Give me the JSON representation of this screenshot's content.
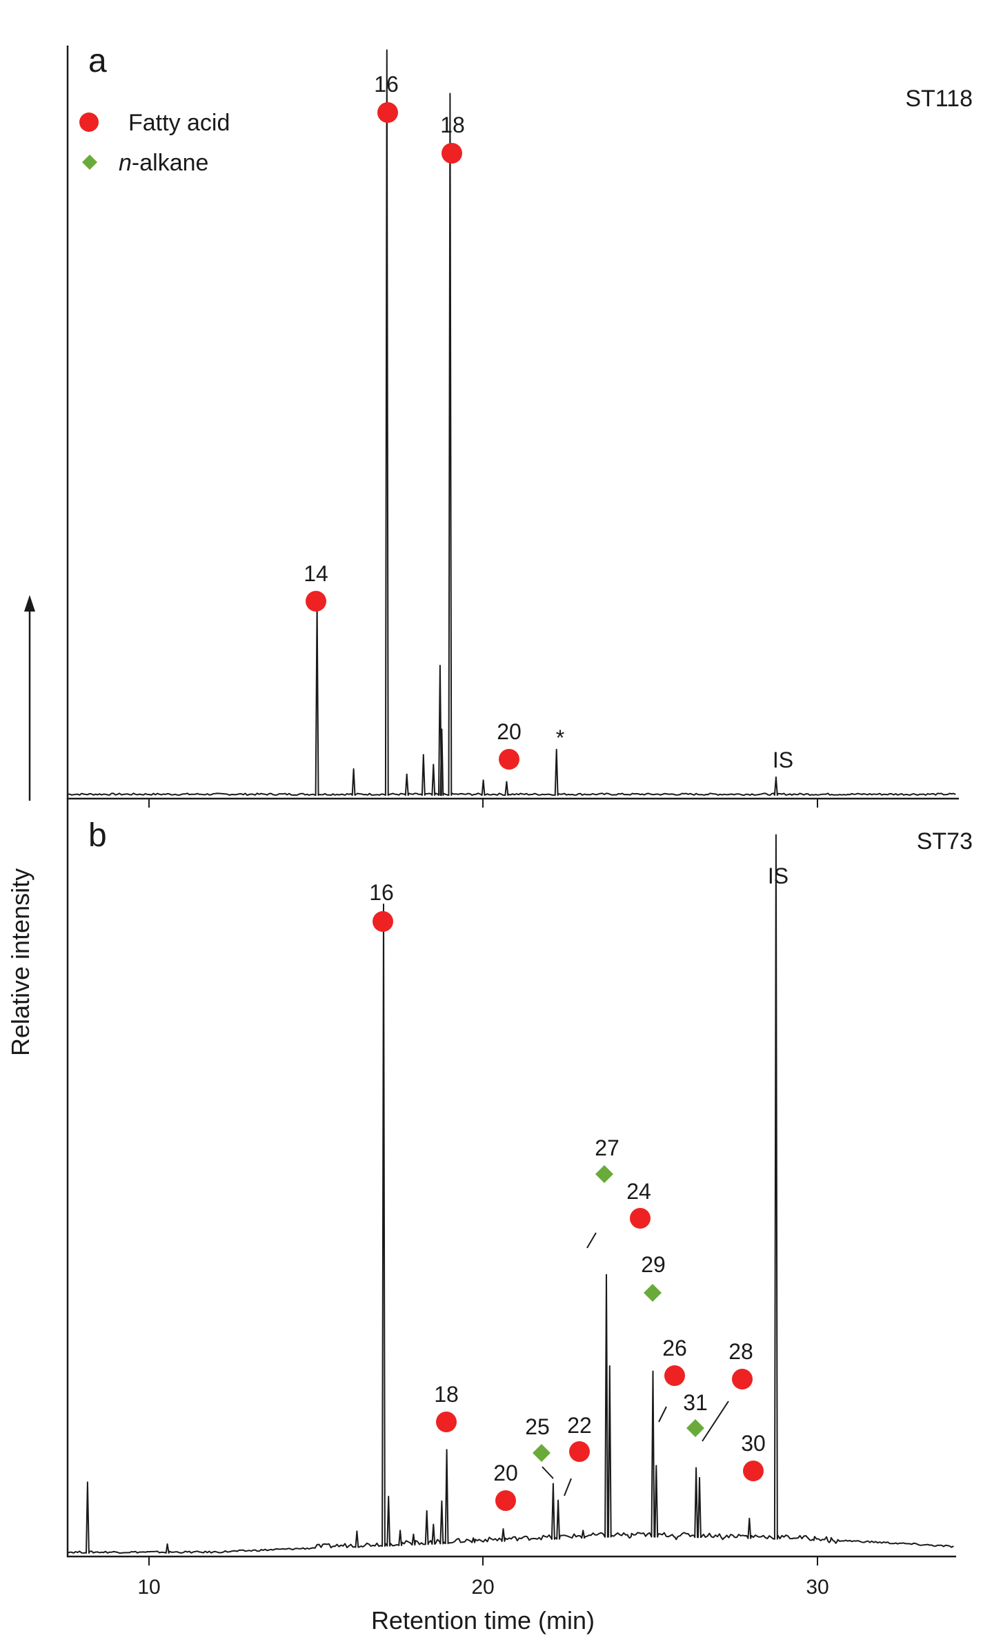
{
  "chart_data": [
    {
      "type": "line",
      "panel_label": "a",
      "sample": "ST118",
      "legend": [
        {
          "marker": "circle",
          "color": "#ee2222",
          "text": "Fatty acid",
          "italic_prefix": "",
          "suffix": ""
        },
        {
          "marker": "diamond",
          "color": "#6aaa3a",
          "text": "n-alkane",
          "italic_prefix": "n",
          "suffix": "-alkane"
        }
      ],
      "ylim": [
        0,
        100
      ],
      "peaks": [
        {
          "x": 15.1,
          "y": 25.6
        },
        {
          "x": 16.2,
          "y": 3.5
        },
        {
          "x": 17.8,
          "y": 2.8
        },
        {
          "x": 18.3,
          "y": 5.4
        },
        {
          "x": 18.6,
          "y": 4.1
        },
        {
          "x": 18.8,
          "y": 17.3
        },
        {
          "x": 18.85,
          "y": 8.8
        },
        {
          "x": 19.1,
          "y": 93.6
        },
        {
          "x": 20.1,
          "y": 2.0
        },
        {
          "x": 20.8,
          "y": 1.8
        },
        {
          "x": 22.3,
          "y": 6.1
        },
        {
          "x": 28.9,
          "y": 2.4
        },
        {
          "x": 17.2,
          "y": 99.4
        }
      ],
      "annotations": [
        {
          "label": "14",
          "marker": "circle",
          "x": 15.1
        },
        {
          "label": "16",
          "marker": "circle",
          "x": 17.2
        },
        {
          "label": "18",
          "marker": "circle",
          "x": 19.1
        },
        {
          "label": "20",
          "marker": "circle",
          "x": 20.8
        },
        {
          "label": "*",
          "marker": "none",
          "x": 22.3
        },
        {
          "label": "IS",
          "marker": "none",
          "x": 28.9
        }
      ]
    },
    {
      "type": "line",
      "panel_label": "b",
      "sample": "ST73",
      "ylim": [
        0,
        100
      ],
      "peaks": [
        {
          "x": 8.2,
          "y": 9.4
        },
        {
          "x": 10.6,
          "y": 1.2
        },
        {
          "x": 16.3,
          "y": 2.9
        },
        {
          "x": 17.1,
          "y": 86.0
        },
        {
          "x": 17.25,
          "y": 7.5
        },
        {
          "x": 17.6,
          "y": 3.0
        },
        {
          "x": 18.0,
          "y": 2.5
        },
        {
          "x": 18.4,
          "y": 5.6
        },
        {
          "x": 18.6,
          "y": 3.8
        },
        {
          "x": 18.85,
          "y": 6.9
        },
        {
          "x": 19.0,
          "y": 13.7
        },
        {
          "x": 19.8,
          "y": 2.0
        },
        {
          "x": 20.7,
          "y": 3.2
        },
        {
          "x": 22.2,
          "y": 9.2
        },
        {
          "x": 22.35,
          "y": 7.0
        },
        {
          "x": 23.1,
          "y": 3.0
        },
        {
          "x": 23.8,
          "y": 36.9
        },
        {
          "x": 23.9,
          "y": 24.8
        },
        {
          "x": 24.5,
          "y": 2.0
        },
        {
          "x": 25.2,
          "y": 24.1
        },
        {
          "x": 25.3,
          "y": 11.6
        },
        {
          "x": 25.9,
          "y": 1.8
        },
        {
          "x": 26.5,
          "y": 11.3
        },
        {
          "x": 26.6,
          "y": 10.0
        },
        {
          "x": 27.3,
          "y": 1.8
        },
        {
          "x": 28.1,
          "y": 4.6
        },
        {
          "x": 28.9,
          "y": 95.2
        },
        {
          "x": 30.0,
          "y": 1.8
        },
        {
          "x": 30.5,
          "y": 1.4
        },
        {
          "x": 30.7,
          "y": 1.3
        }
      ],
      "annotations": [
        {
          "label": "16",
          "marker": "circle",
          "x": 17.1
        },
        {
          "label": "18",
          "marker": "circle",
          "x": 19.0
        },
        {
          "label": "20",
          "marker": "circle",
          "x": 20.7
        },
        {
          "label": "25",
          "marker": "diamond",
          "x": 22.2
        },
        {
          "label": "22",
          "marker": "circle",
          "x": 22.35
        },
        {
          "label": "27",
          "marker": "diamond",
          "x": 23.8
        },
        {
          "label": "24",
          "marker": "circle",
          "x": 23.9
        },
        {
          "label": "29",
          "marker": "diamond",
          "x": 25.2
        },
        {
          "label": "26",
          "marker": "circle",
          "x": 25.3
        },
        {
          "label": "31",
          "marker": "diamond",
          "x": 26.5
        },
        {
          "label": "28",
          "marker": "circle",
          "x": 26.6
        },
        {
          "label": "30",
          "marker": "circle",
          "x": 28.1
        },
        {
          "label": "IS",
          "marker": "none",
          "x": 28.9
        }
      ]
    }
  ],
  "x_axis": {
    "label": "Retention time (min)",
    "ticks": [
      "10",
      "20",
      "30"
    ],
    "tick_values": [
      10,
      20,
      30
    ],
    "xlim": [
      7.6,
      34.4
    ]
  },
  "y_axis": {
    "label": "Relative intensity"
  },
  "colors": {
    "fatty_acid": "#ee2222",
    "alkane": "#6aaa3a",
    "trace": "#1a1a1a"
  }
}
